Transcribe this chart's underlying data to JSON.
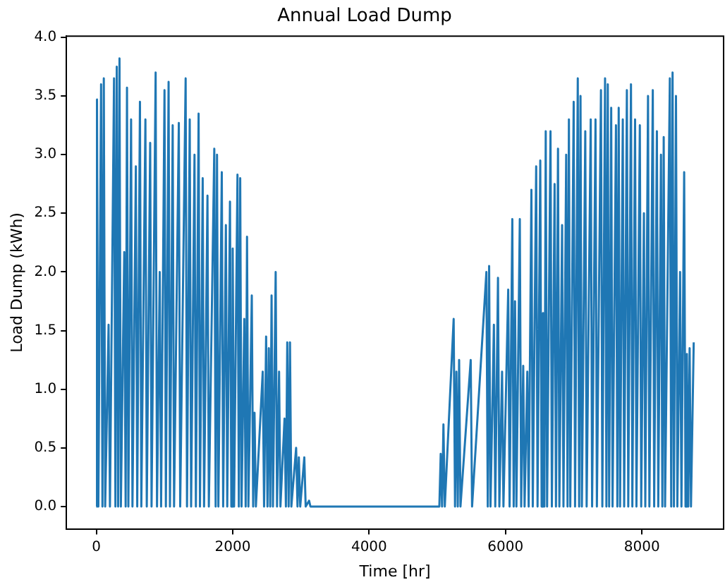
{
  "chart_data": {
    "type": "line",
    "title": "Annual Load Dump",
    "xlabel": "Time [hr]",
    "ylabel": "Load Dump (kWh)",
    "xlim": [
      -438,
      9198
    ],
    "xticks": [
      0,
      2000,
      4000,
      6000,
      8000
    ],
    "ylim": [
      -0.19,
      4.01
    ],
    "yticks": [
      {
        "value": 0,
        "label": "0.0"
      },
      {
        "value": 0.5,
        "label": "0.5"
      },
      {
        "value": 1,
        "label": "1.0"
      },
      {
        "value": 1.5,
        "label": "1.5"
      },
      {
        "value": 2,
        "label": "2.0"
      },
      {
        "value": 2.5,
        "label": "2.5"
      },
      {
        "value": 3,
        "label": "3.0"
      },
      {
        "value": 3.5,
        "label": "3.5"
      },
      {
        "value": 4,
        "label": "4.0"
      }
    ],
    "grid": false,
    "legend": false,
    "marker": "none",
    "line_style": "solid",
    "x": [
      0,
      10,
      30,
      70,
      90,
      110,
      130,
      180,
      200,
      260,
      280,
      300,
      320,
      340,
      360,
      410,
      430,
      450,
      470,
      510,
      530,
      580,
      600,
      640,
      660,
      720,
      740,
      790,
      810,
      870,
      890,
      930,
      950,
      1000,
      1020,
      1060,
      1080,
      1120,
      1140,
      1210,
      1230,
      1310,
      1330,
      1370,
      1390,
      1440,
      1460,
      1500,
      1520,
      1560,
      1580,
      1630,
      1650,
      1730,
      1750,
      1770,
      1790,
      1840,
      1860,
      1900,
      1920,
      1960,
      1980,
      2000,
      2020,
      2070,
      2090,
      2110,
      2130,
      2170,
      2190,
      2210,
      2230,
      2280,
      2300,
      2320,
      2340,
      2440,
      2460,
      2490,
      2510,
      2530,
      2550,
      2570,
      2590,
      2630,
      2650,
      2680,
      2700,
      2760,
      2780,
      2800,
      2820,
      2840,
      2860,
      2930,
      2950,
      2970,
      2990,
      3050,
      3070,
      3120,
      3140,
      5030,
      5050,
      5070,
      5090,
      5110,
      5240,
      5260,
      5280,
      5300,
      5320,
      5340,
      5490,
      5510,
      5720,
      5740,
      5760,
      5780,
      5830,
      5850,
      5890,
      5910,
      5950,
      5970,
      6040,
      6060,
      6100,
      6120,
      6140,
      6160,
      6210,
      6230,
      6260,
      6280,
      6320,
      6340,
      6380,
      6400,
      6450,
      6470,
      6510,
      6530,
      6550,
      6570,
      6590,
      6610,
      6660,
      6680,
      6720,
      6740,
      6770,
      6790,
      6830,
      6850,
      6890,
      6910,
      6930,
      6950,
      7000,
      7020,
      7060,
      7080,
      7100,
      7120,
      7170,
      7190,
      7250,
      7270,
      7320,
      7340,
      7400,
      7420,
      7460,
      7480,
      7500,
      7520,
      7550,
      7570,
      7620,
      7640,
      7660,
      7680,
      7720,
      7740,
      7780,
      7800,
      7840,
      7860,
      7900,
      7920,
      7970,
      7990,
      8030,
      8050,
      8090,
      8110,
      8160,
      8180,
      8220,
      8240,
      8280,
      8300,
      8320,
      8340,
      8410,
      8430,
      8450,
      8470,
      8500,
      8520,
      8560,
      8580,
      8620,
      8640,
      8660,
      8680,
      8700,
      8720,
      8760
    ],
    "series": [
      {
        "color": "#1f77b4",
        "values": [
          0,
          3.47,
          0,
          3.6,
          0,
          3.65,
          0,
          1.55,
          0,
          3.65,
          0,
          3.75,
          0,
          3.82,
          0,
          2.17,
          0,
          3.57,
          0,
          3.3,
          0,
          2.9,
          0,
          3.45,
          0,
          3.3,
          0,
          3.1,
          0,
          3.7,
          0,
          2.0,
          0,
          3.55,
          0,
          3.62,
          0,
          3.25,
          0,
          3.27,
          0,
          3.65,
          0,
          3.3,
          0,
          3.0,
          0,
          3.35,
          0,
          2.8,
          0,
          2.65,
          0,
          3.05,
          0,
          3.0,
          0,
          2.85,
          0,
          2.4,
          0,
          2.6,
          0,
          2.2,
          0,
          2.83,
          0,
          2.8,
          0,
          1.6,
          0,
          2.3,
          0,
          1.8,
          0,
          0.8,
          0,
          1.15,
          0,
          1.45,
          0,
          1.35,
          0,
          1.8,
          0,
          2.0,
          0,
          1.15,
          0,
          0.75,
          0,
          1.4,
          0,
          1.4,
          0,
          0.5,
          0,
          0.42,
          0,
          0.42,
          0,
          0.05,
          0,
          0,
          0.45,
          0,
          0.7,
          0,
          1.6,
          0,
          1.15,
          0,
          1.25,
          0,
          1.25,
          0,
          2.0,
          0,
          2.05,
          0,
          1.55,
          0,
          1.95,
          0,
          1.15,
          0,
          1.85,
          0,
          2.45,
          0,
          1.75,
          0,
          2.45,
          0,
          1.2,
          0,
          1.15,
          0,
          2.7,
          0,
          2.9,
          0,
          2.95,
          0,
          1.65,
          0,
          3.2,
          0,
          3.2,
          0,
          2.75,
          0,
          3.05,
          0,
          2.4,
          0,
          3.0,
          0,
          3.3,
          0,
          3.45,
          0,
          3.65,
          0,
          3.5,
          0,
          3.2,
          0,
          3.3,
          0,
          3.3,
          0,
          3.55,
          0,
          3.65,
          0,
          3.6,
          0,
          3.4,
          0,
          3.25,
          0,
          3.4,
          0,
          3.3,
          0,
          3.55,
          0,
          3.6,
          0,
          3.3,
          0,
          3.25,
          0,
          2.5,
          0,
          3.5,
          0,
          3.55,
          0,
          3.2,
          0,
          3.0,
          0,
          3.15,
          0,
          3.65,
          0,
          3.7,
          0,
          3.5,
          0,
          2.0,
          0,
          2.85,
          0,
          1.3,
          0,
          1.35,
          0,
          1.4
        ]
      }
    ]
  }
}
